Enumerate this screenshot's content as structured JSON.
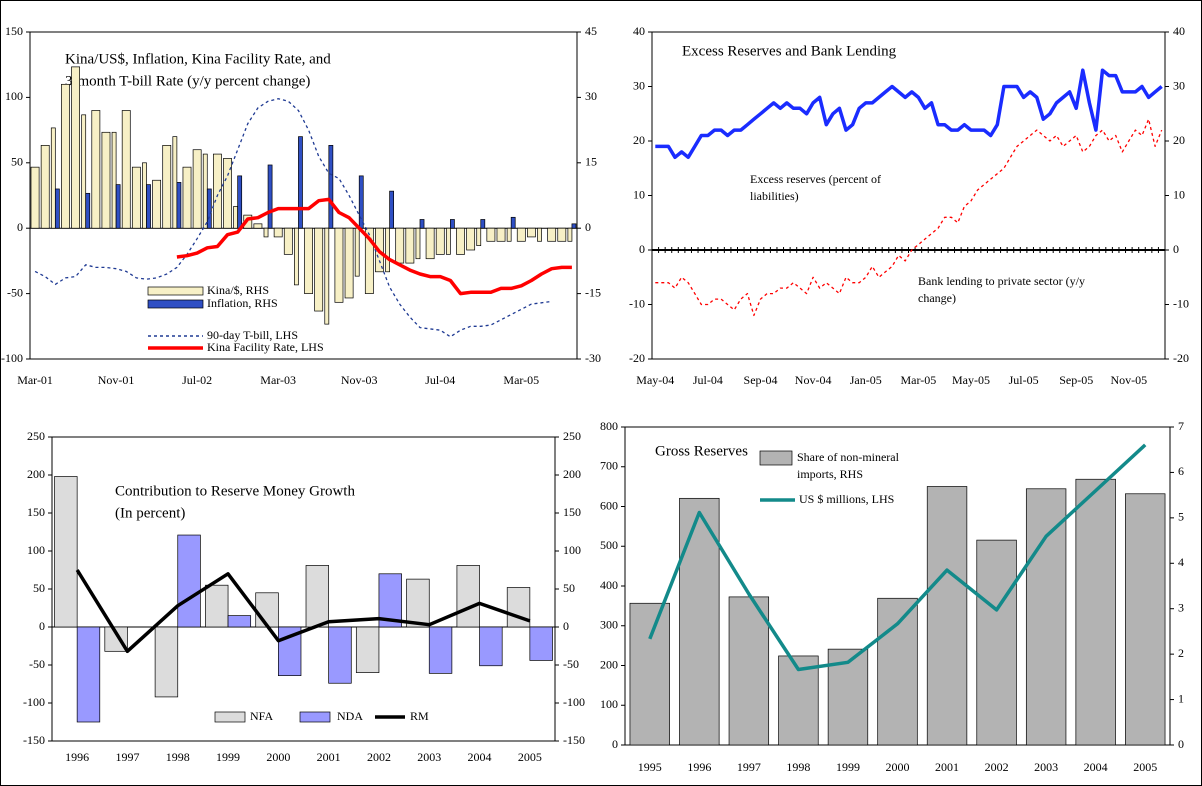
{
  "chart_data": [
    {
      "type": "bar",
      "title": [
        "Kina/US$, Inflation, Kina Facility Rate, and",
        "3-month T-bill Rate  (y/y percent change)"
      ],
      "categories": [
        "Mar-01",
        null,
        null,
        null,
        null,
        null,
        null,
        null,
        "Nov-01",
        null,
        null,
        null,
        null,
        null,
        null,
        null,
        "Jul-02",
        null,
        null,
        null,
        null,
        null,
        null,
        null,
        "Mar-03",
        null,
        null,
        null,
        null,
        null,
        null,
        null,
        "Nov-03",
        null,
        null,
        null,
        null,
        null,
        null,
        null,
        "Jul-04",
        null,
        null,
        null,
        null,
        null,
        null,
        null,
        "Mar-05",
        null,
        null,
        null,
        null,
        null
      ],
      "ylim": [
        -100,
        150
      ],
      "yticks": [
        -100,
        -50,
        0,
        50,
        100,
        150
      ],
      "y2lim": [
        -30,
        45
      ],
      "y2ticks": [
        -30,
        -15,
        0,
        15,
        30,
        45
      ],
      "series": [
        {
          "name": "Kina/$, RHS",
          "type": "bar",
          "axis": "y2",
          "color": "#f7f0c6",
          "edgecolor": "#000000",
          "values": [
            14,
            19,
            23,
            33,
            37,
            26,
            27,
            22,
            22,
            27,
            14,
            15,
            11,
            19,
            21,
            14,
            18,
            17,
            17,
            16,
            5,
            3,
            1,
            -2,
            -2,
            -6,
            -13,
            -15,
            -19,
            -22,
            -17,
            -16,
            -11,
            -15,
            -10,
            -10,
            -8,
            -8,
            -7,
            -7,
            -6,
            -6,
            -6,
            -5,
            -4,
            -3,
            -3,
            -3,
            -3,
            -2,
            -3,
            -3,
            -3,
            -3
          ]
        },
        {
          "name": "Inflation, RHS",
          "type": "bar",
          "axis": "y2",
          "color": "#2f4fc4",
          "edgecolor": "#000000",
          "values": [
            null,
            null,
            9,
            null,
            null,
            8,
            null,
            null,
            10,
            null,
            null,
            10,
            null,
            null,
            10.5,
            null,
            null,
            9,
            null,
            null,
            12,
            null,
            null,
            14.5,
            null,
            null,
            21,
            null,
            null,
            19,
            null,
            null,
            12,
            null,
            null,
            8.5,
            null,
            null,
            2,
            null,
            null,
            2,
            null,
            null,
            2,
            null,
            null,
            2.5,
            null,
            null,
            0,
            null,
            null,
            1
          ]
        },
        {
          "name": "90-day T-bill, LHS",
          "type": "line",
          "style": "dotted",
          "color": "#1f3a93",
          "values": [
            -33,
            -37,
            -43,
            -38,
            -37,
            -28,
            -30,
            -30,
            -31,
            -33,
            -38,
            -39,
            -38,
            -35,
            -30,
            -20,
            -8,
            5,
            25,
            40,
            60,
            80,
            92,
            97,
            99,
            97,
            90,
            75,
            55,
            42,
            38,
            25,
            10,
            -5,
            -25,
            -45,
            -58,
            -68,
            -76,
            -77,
            -78,
            -83,
            -78,
            -75,
            -75,
            -74,
            -70,
            -66,
            -62,
            -58,
            -57,
            -56,
            null,
            null
          ]
        },
        {
          "name": "Kina Facility Rate, LHS",
          "type": "line",
          "style": "solid",
          "color": "#ff0000",
          "values": [
            null,
            null,
            null,
            null,
            null,
            null,
            null,
            null,
            null,
            null,
            null,
            null,
            null,
            null,
            -22,
            -21,
            -19,
            -15,
            -14,
            -5,
            -3,
            7,
            8,
            12,
            15,
            15,
            15,
            15,
            21,
            22,
            12,
            8,
            0,
            -8,
            -18,
            -24,
            -28,
            -32,
            -35,
            -37,
            -37,
            -40,
            -50,
            -49,
            -49,
            -49,
            -46,
            -46,
            -44,
            -40,
            -35,
            -31,
            -30,
            -30
          ]
        }
      ]
    },
    {
      "type": "line",
      "title": [
        "Excess Reserves and Bank Lending"
      ],
      "categories": [
        "May-04",
        null,
        null,
        null,
        null,
        null,
        null,
        null,
        "Jul-04",
        null,
        null,
        null,
        null,
        null,
        null,
        null,
        "Sep-04",
        null,
        null,
        null,
        null,
        null,
        null,
        null,
        "Nov-04",
        null,
        null,
        null,
        null,
        null,
        null,
        null,
        "Jan-05",
        null,
        null,
        null,
        null,
        null,
        null,
        null,
        "Mar-05",
        null,
        null,
        null,
        null,
        null,
        null,
        null,
        "May-05",
        null,
        null,
        null,
        null,
        null,
        null,
        null,
        "Jul-05",
        null,
        null,
        null,
        null,
        null,
        null,
        null,
        "Sep-05",
        null,
        null,
        null,
        null,
        null,
        null,
        null,
        "Nov-05",
        null,
        null,
        null,
        null,
        null
      ],
      "ylim": [
        -20,
        40
      ],
      "yticks": [
        -20,
        -10,
        0,
        10,
        20,
        30,
        40
      ],
      "y2lim": [
        -20,
        40
      ],
      "y2ticks": [
        -20,
        -10,
        0,
        10,
        20,
        30,
        40
      ],
      "series": [
        {
          "name": [
            "Excess reserves (percent of",
            "liabilities)"
          ],
          "type": "line",
          "style": "solid",
          "color": "#1a2cff",
          "values": [
            19,
            19,
            19,
            17,
            18,
            17,
            19,
            21,
            21,
            22,
            22,
            21,
            22,
            22,
            23,
            24,
            25,
            26,
            27,
            26,
            27,
            26,
            26,
            25,
            27,
            28,
            23,
            25,
            26,
            22,
            23,
            26,
            27,
            27,
            28,
            29,
            30,
            29,
            28,
            29,
            28,
            26,
            27,
            23,
            23,
            22,
            22,
            23,
            22,
            22,
            22,
            21,
            23,
            30,
            30,
            30,
            28,
            29,
            28,
            24,
            25,
            27,
            28,
            29,
            26,
            33,
            27,
            22,
            33,
            32,
            32,
            29,
            29,
            29,
            30,
            28,
            29,
            30
          ]
        },
        {
          "name": [
            "Bank lending to private sector (y/y",
            "change)"
          ],
          "type": "line",
          "style": "dotted",
          "color": "#ff0000",
          "values": [
            -6,
            -6,
            -6,
            -7,
            -5,
            -6,
            -8,
            -10,
            -10,
            -9,
            -9,
            -10,
            -11,
            -9,
            -8,
            -12,
            -9,
            -8,
            -8,
            -7,
            -7,
            -6,
            -7,
            -8,
            -5,
            -7,
            -6,
            -7,
            -8,
            -5,
            -6,
            -6,
            -5,
            -3,
            -5,
            -4,
            -3,
            -1,
            -2,
            0,
            1,
            2,
            3,
            4,
            6,
            6,
            5,
            8,
            9,
            11,
            12,
            13,
            14,
            15,
            17,
            19,
            20,
            21,
            22,
            21,
            20,
            21,
            19,
            20,
            21,
            18,
            19,
            21,
            22,
            20,
            21,
            18,
            20,
            22,
            21,
            24,
            19,
            22
          ]
        }
      ]
    },
    {
      "type": "bar",
      "title": [
        "Contribution to Reserve Money Growth",
        "(In percent)"
      ],
      "categories": [
        "1996",
        "1997",
        "1998",
        "1999",
        "2000",
        "2001",
        "2002",
        "2003",
        "2004",
        "2005"
      ],
      "ylim": [
        -150,
        250
      ],
      "yticks": [
        -150,
        -100,
        -50,
        0,
        50,
        100,
        150,
        200,
        250
      ],
      "y2lim": [
        -150,
        250
      ],
      "y2ticks": [
        -150,
        -100,
        -50,
        0,
        50,
        100,
        150,
        200,
        250
      ],
      "series": [
        {
          "name": "NFA",
          "type": "bar",
          "color": "#dcdcdc",
          "edgecolor": "#000000",
          "values": [
            198,
            -32,
            -92,
            55,
            45,
            81,
            -60,
            63,
            81,
            52
          ]
        },
        {
          "name": "NDA",
          "type": "bar",
          "color": "#9999ff",
          "edgecolor": "#000000",
          "values": [
            -125,
            0,
            121,
            15,
            -64,
            -74,
            70,
            -61,
            -51,
            -44
          ]
        },
        {
          "name": "RM",
          "type": "line",
          "style": "solid",
          "color": "#000000",
          "values": [
            75,
            -32,
            28,
            70,
            -18,
            7,
            11,
            3,
            31,
            8
          ]
        }
      ]
    },
    {
      "type": "bar",
      "title": [
        "Gross Reserves"
      ],
      "categories": [
        "1995",
        "1996",
        "1997",
        "1998",
        "1999",
        "2000",
        "2001",
        "2002",
        "2003",
        "2004",
        "2005"
      ],
      "ylim": [
        0,
        800
      ],
      "yticks": [
        0,
        100,
        200,
        300,
        400,
        500,
        600,
        700,
        800
      ],
      "y2lim": [
        0,
        7
      ],
      "y2ticks": [
        0,
        1,
        2,
        3,
        4,
        5,
        6,
        7
      ],
      "series": [
        {
          "name": [
            "Share of non-mineral",
            "imports, RHS"
          ],
          "type": "bar",
          "axis": "y2",
          "color": "#b3b3b3",
          "edgecolor": "#000000",
          "values": [
            3.12,
            5.43,
            3.26,
            1.96,
            2.11,
            3.23,
            5.69,
            4.51,
            5.64,
            5.85,
            5.53
          ]
        },
        {
          "name": "US $ millions, LHS",
          "type": "line",
          "style": "solid",
          "color": "#138a8a",
          "values": [
            267,
            585,
            380,
            190,
            208,
            305,
            440,
            340,
            525,
            640,
            755
          ]
        }
      ]
    }
  ]
}
